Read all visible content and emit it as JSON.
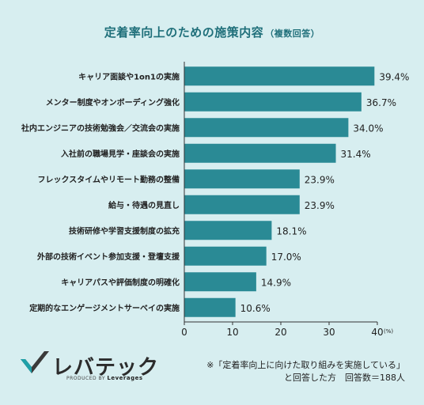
{
  "title": "定着率向上のための施策内容",
  "title_suffix": "（複数回答）",
  "brand": {
    "name": "レバテック",
    "produced_by": "PRODUCED BY",
    "parent": "Leverages"
  },
  "note": {
    "line1": "※「定着率向上に向けた取り組みを実施している」",
    "line2": "と回答した方　回答数＝188人"
  },
  "colors": {
    "background": "#d7eef0",
    "bar": "#2a8a95",
    "title": "#1f6f7a"
  },
  "chart_data": {
    "type": "bar",
    "orientation": "horizontal",
    "categories": [
      "キャリア面談や1on1の実施",
      "メンター制度やオンボーディング強化",
      "社内エンジニアの技術勉強会／交流会の実施",
      "入社前の職場見学・座談会の実施",
      "フレックスタイムやリモート勤務の整備",
      "給与・待遇の見直し",
      "技術研修や学習支援制度の拡充",
      "外部の技術イベント参加支援・登壇支援",
      "キャリアパスや評価制度の明確化",
      "定期的なエンゲージメントサーベイの実施"
    ],
    "values": [
      39.4,
      36.7,
      34.0,
      31.4,
      23.9,
      23.9,
      18.1,
      17.0,
      14.9,
      10.6
    ],
    "value_labels": [
      "39.4%",
      "36.7%",
      "34.0%",
      "31.4%",
      "23.9%",
      "23.9%",
      "18.1%",
      "17.0%",
      "14.9%",
      "10.6%"
    ],
    "xlim": [
      0,
      40
    ],
    "xticks": [
      "0",
      "10",
      "20",
      "30",
      "40"
    ],
    "x_unit": "(%)",
    "grid": false
  }
}
